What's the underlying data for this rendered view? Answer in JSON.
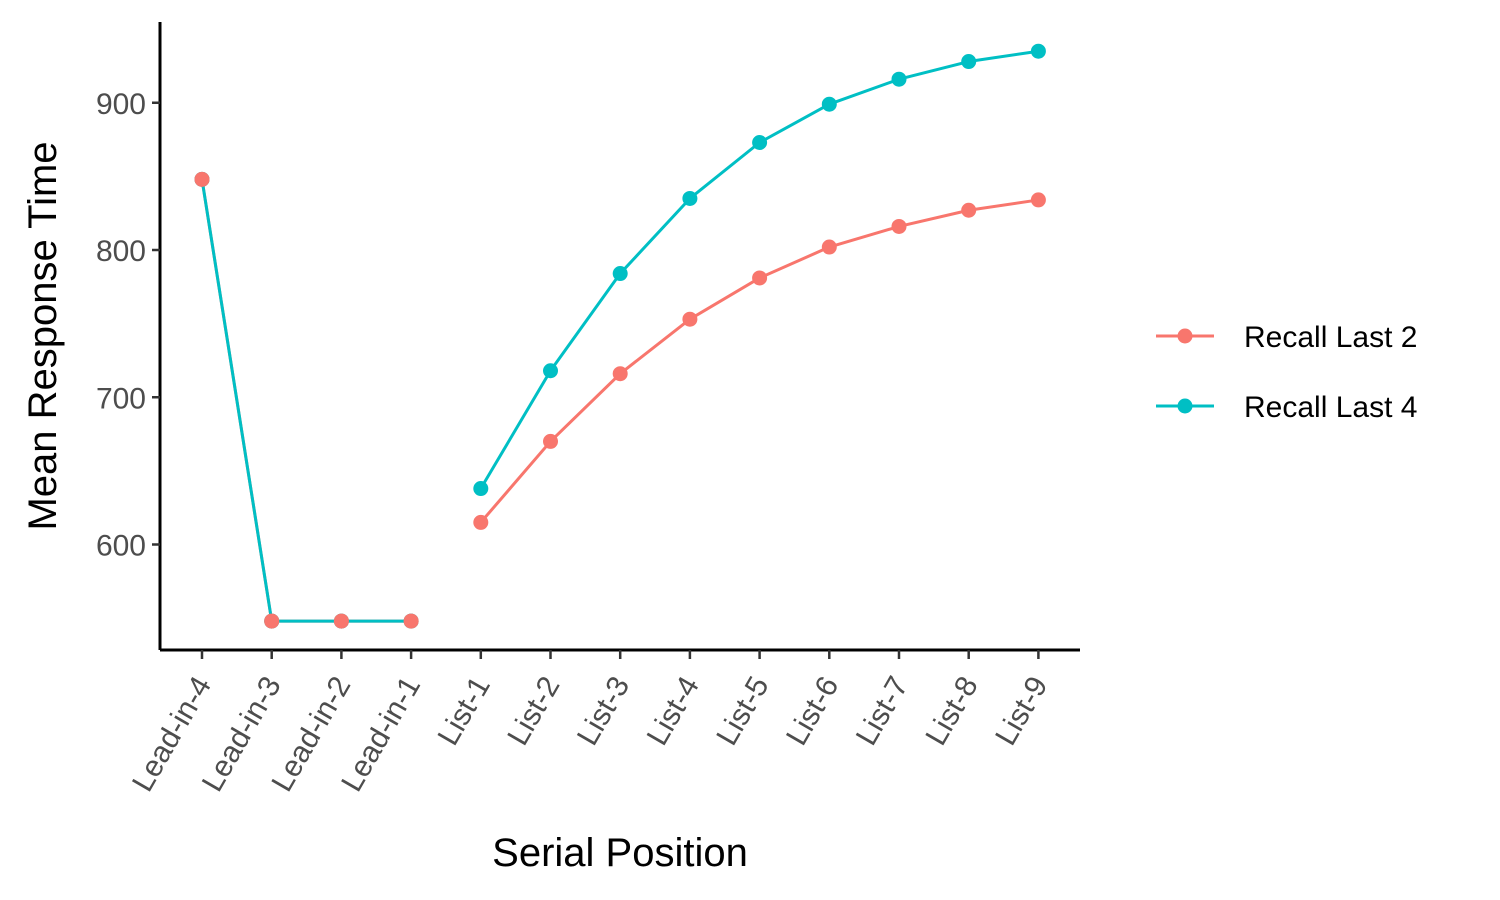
{
  "chart_data": {
    "type": "line",
    "title": "",
    "xlabel": "Serial Position",
    "ylabel": "Mean Response Time",
    "categories": [
      "Lead-in-4",
      "Lead-in-3",
      "Lead-in-2",
      "Lead-in-1",
      "List-1",
      "List-2",
      "List-3",
      "List-4",
      "List-5",
      "List-6",
      "List-7",
      "List-8",
      "List-9"
    ],
    "y_ticks": [
      600,
      700,
      800,
      900
    ],
    "ylim": [
      530,
      950
    ],
    "grid": false,
    "legend_position": "right",
    "series": [
      {
        "name": "Recall Last 2",
        "color": "#F8766D",
        "segments": [
          {
            "start": 0,
            "values": [
              848,
              548,
              548,
              548
            ]
          },
          {
            "start": 4,
            "values": [
              615,
              670,
              716,
              753,
              781,
              802,
              816,
              827,
              834
            ]
          }
        ]
      },
      {
        "name": "Recall Last 4",
        "color": "#00BFC4",
        "segments": [
          {
            "start": 0,
            "values": [
              848,
              548,
              548,
              548
            ]
          },
          {
            "start": 4,
            "values": [
              638,
              718,
              784,
              835,
              873,
              899,
              916,
              928,
              935
            ]
          }
        ]
      }
    ]
  }
}
